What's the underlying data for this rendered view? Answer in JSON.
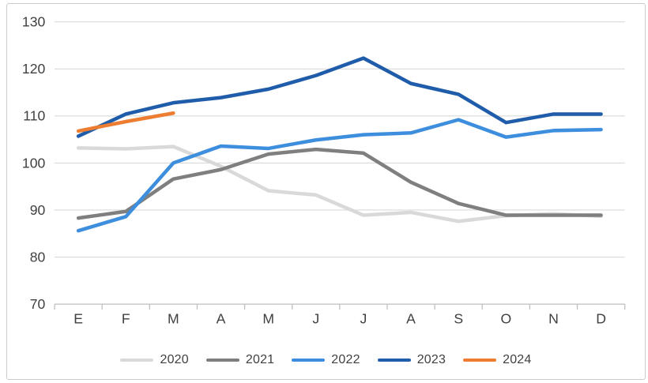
{
  "chart_data": {
    "type": "line",
    "categories": [
      "E",
      "F",
      "M",
      "A",
      "M",
      "J",
      "J",
      "A",
      "S",
      "O",
      "N",
      "D"
    ],
    "series": [
      {
        "name": "2020",
        "color": "#d9d9d9",
        "values": [
          103.2,
          103.0,
          103.5,
          99.3,
          94.1,
          93.2,
          88.9,
          89.5,
          87.6,
          88.8,
          89.2,
          88.7
        ]
      },
      {
        "name": "2021",
        "color": "#7f7f7f",
        "values": [
          88.3,
          89.7,
          96.6,
          98.6,
          101.9,
          102.9,
          102.1,
          95.9,
          91.4,
          88.9,
          88.9,
          88.9
        ]
      },
      {
        "name": "2022",
        "color": "#3e8ede",
        "values": [
          85.6,
          88.6,
          100.0,
          103.6,
          103.1,
          104.9,
          106.0,
          106.4,
          109.2,
          105.5,
          106.9,
          107.1
        ]
      },
      {
        "name": "2023",
        "color": "#1f5ca9",
        "values": [
          105.7,
          110.4,
          112.8,
          113.9,
          115.7,
          118.6,
          122.3,
          116.9,
          114.6,
          108.6,
          110.4,
          110.4
        ]
      },
      {
        "name": "2024",
        "color": "#ed7d31",
        "values": [
          106.8,
          108.8,
          110.6,
          null,
          null,
          null,
          null,
          null,
          null,
          null,
          null,
          null
        ]
      }
    ],
    "ylim": [
      70,
      130
    ],
    "y_tick_step": 10,
    "y_tick_labels": [
      "70",
      "80",
      "90",
      "100",
      "110",
      "120",
      "130"
    ],
    "grid": true,
    "legend_position": "bottom",
    "axis_label_color": "#404040",
    "gridline_color": "#d9d9d9",
    "axis_line_color": "#bfbfbf",
    "xlabel": "",
    "ylabel": ""
  }
}
